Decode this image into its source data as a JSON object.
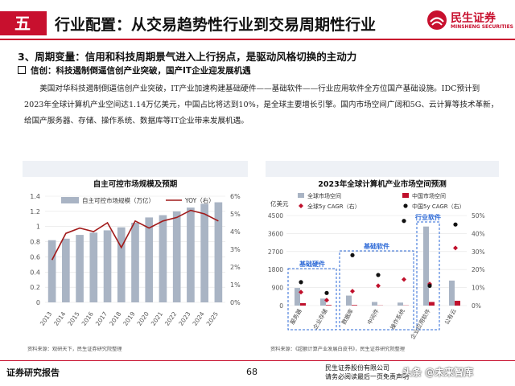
{
  "header": {
    "section_number": "五",
    "title": "行业配置：从交易趋势性行业到交易周期性行业",
    "logo_cn": "民生证券",
    "logo_en": "MINSHENG SECURITIES"
  },
  "subheading": "3、周期变量：信用和科技周期景气进入上行拐点，是驱动风格切换的主动力",
  "point": "信创：科技遏制倒逼信创产业突破，国产IT企业迎发展机遇",
  "body_text": "美国对华科技遏制倒逼信创产业突破，IT产业加速构建基础硬件——基础软件——行业应用软件全方位国产基础设施。IDC预计到2023年全球计算机产业空间达1.14万亿美元，中国占比将达到10%，是全球主要增长引擎。国内市场空间广阔和5G、云计算等技术革新，给国产服务器、存储、操作系统、数据库等IT企业带来发展机遇。",
  "colors": {
    "brand_red": "#c8102e",
    "bar_gray": "#a9b4c4",
    "line_red": "#a11a1a",
    "dark_red": "#c0102c",
    "accent_blue": "#2f6bd7"
  },
  "left_chart": {
    "title": "自主可控市场规模及预期",
    "source": "资料来源：观研天下，民生证券研究院整理",
    "chart_data": {
      "type": "bar",
      "categories": [
        "2013",
        "2014",
        "2015",
        "2016",
        "2017",
        "2018",
        "2019",
        "2020",
        "2021",
        "2022",
        "2023",
        "2024",
        "2025"
      ],
      "series": [
        {
          "name": "自主可控市场规模（万亿）",
          "type": "bar",
          "axis": "left",
          "values": [
            0.82,
            0.84,
            0.89,
            0.92,
            0.95,
            0.99,
            1.05,
            1.12,
            1.15,
            1.2,
            1.25,
            1.3,
            1.32
          ]
        },
        {
          "name": "YOY（右）",
          "type": "line",
          "axis": "right",
          "values": [
            2.4,
            3.9,
            4.2,
            4.0,
            4.5,
            3.1,
            4.6,
            4.2,
            4.6,
            4.8,
            5.2,
            5.0,
            4.6
          ]
        }
      ],
      "y_left": {
        "min": 0,
        "max": 1.4,
        "ticks": [
          "0",
          "0.2",
          "0.4",
          "0.6",
          "0.8",
          "1",
          "1.2",
          "1.4"
        ]
      },
      "y_right": {
        "min": 0,
        "max": 6,
        "ticks": [
          "0%",
          "1%",
          "2%",
          "3%",
          "4%",
          "5%",
          "6%"
        ]
      },
      "legend_position": "top",
      "grid": true
    }
  },
  "right_chart": {
    "title": "2023年全球计算机产业市场空间预测",
    "source": "资料来源：《超额计算产业发展白皮书》，民生证券研究院整理",
    "chart_data": {
      "type": "bar",
      "ylabel": "亿美元",
      "categories": [
        "服务器",
        "企业存储",
        "数据库",
        "中间件",
        "操作系统",
        "企业应用软件",
        "公有云"
      ],
      "series": [
        {
          "name": "全球市场空间",
          "type": "bar",
          "axis": "left",
          "values": [
            880,
            350,
            500,
            180,
            150,
            3950,
            1250
          ]
        },
        {
          "name": "中国市场空间",
          "type": "bar",
          "axis": "left",
          "values": [
            120,
            30,
            30,
            10,
            10,
            180,
            240
          ]
        },
        {
          "name": "全球5y CAGR（右）",
          "type": "point",
          "axis": "right",
          "values": [
            7.5,
            3.0,
            8.0,
            11.0,
            14.5,
            12.0,
            32.0
          ]
        },
        {
          "name": "中国5y CAGR（右）",
          "type": "point",
          "axis": "right",
          "values": [
            13.0,
            7.0,
            28.0,
            17.0,
            47.0,
            11.0,
            45.0
          ]
        }
      ],
      "y_left": {
        "min": 0,
        "max": 4500,
        "ticks": [
          "0",
          "900",
          "1800",
          "2700",
          "3600",
          "4500"
        ]
      },
      "y_right": {
        "min": 0,
        "max": 50,
        "ticks": [
          "0%",
          "10%",
          "20%",
          "30%",
          "40%",
          "50%"
        ]
      },
      "groups": [
        {
          "label": "基础硬件",
          "from": 0,
          "to": 1
        },
        {
          "label": "基础软件",
          "from": 2,
          "to": 4
        },
        {
          "label": "行业软件",
          "from": 5,
          "to": 5
        }
      ],
      "legend_position": "top",
      "grid": true
    }
  },
  "footer": {
    "left": "证券研究报告",
    "page_number": "68",
    "right_line1": "民生证券股份有限公司",
    "right_line2": "请务必阅读最后一页免责声明",
    "watermark": "头条 @未来智库"
  }
}
